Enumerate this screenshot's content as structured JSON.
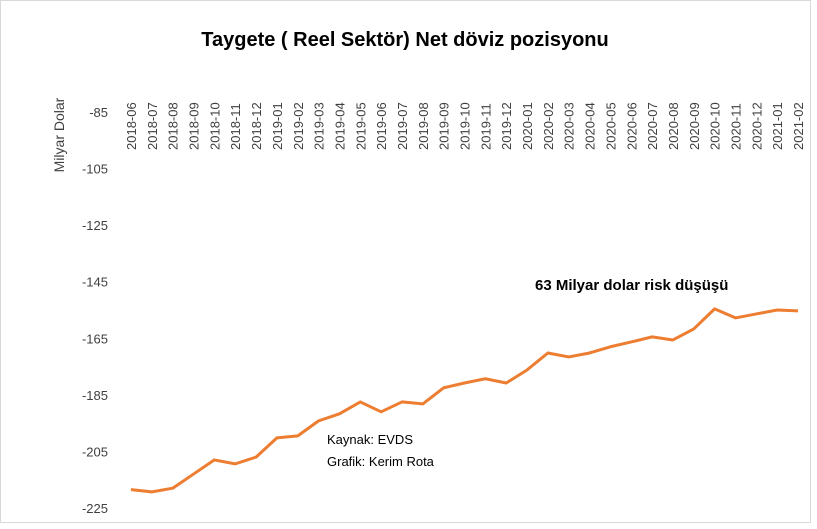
{
  "chart_data": {
    "type": "line",
    "title": "Taygete  ( Reel Sektör) Net döviz pozisyonu",
    "y_label": "Milyar Dolar",
    "annotations": [
      "63 Milyar  dolar risk düşüşü",
      "Kaynak: EVDS",
      "Grafik: Kerim Rota"
    ],
    "categories": [
      "2018-06",
      "2018-07",
      "2018-08",
      "2018-09",
      "2018-10",
      "2018-11",
      "2018-12",
      "2019-01",
      "2019-02",
      "2019-03",
      "2019-04",
      "2019-05",
      "2019-06",
      "2019-07",
      "2019-08",
      "2019-09",
      "2019-10",
      "2019-11",
      "2019-12",
      "2020-01",
      "2020-02",
      "2020-03",
      "2020-04",
      "2020-05",
      "2020-06",
      "2020-07",
      "2020-08",
      "2020-09",
      "2020-10",
      "2020-11",
      "2020-12",
      "2021-01",
      "2021-02"
    ],
    "values": [
      -218.5,
      -219.3,
      -218,
      -213,
      -208,
      -209.4,
      -207,
      -200.2,
      -199.5,
      -194.2,
      -191.7,
      -187.5,
      -191,
      -187.5,
      -188.2,
      -182.5,
      -180.8,
      -179.3,
      -180.8,
      -176.2,
      -170.2,
      -171.6,
      -170.2,
      -168,
      -166.3,
      -164.5,
      -165.6,
      -161.7,
      -154.6,
      -157.8,
      -156.4,
      -155,
      -155.3
    ],
    "color": "#ed7d31",
    "ylim": [
      -225,
      -85
    ],
    "yticks": [
      -225,
      -205,
      -185,
      -165,
      -145,
      -125,
      -105,
      -85
    ]
  }
}
